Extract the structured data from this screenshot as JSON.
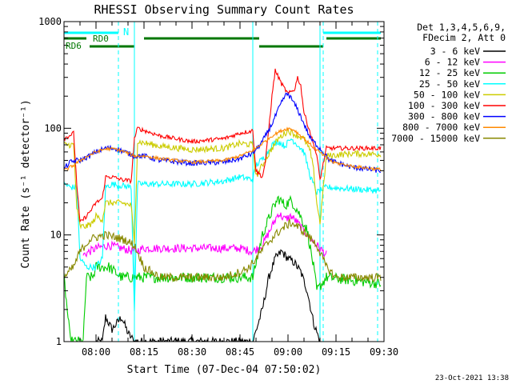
{
  "chart_data": {
    "type": "line",
    "title": "RHESSI Observing Summary Count Rates",
    "xlabel": "Start Time (07-Dec-04 07:50:02)",
    "ylabel": "Count Rate (s⁻¹ detector⁻¹)",
    "y_scale": "log",
    "ylim": [
      1,
      1000
    ],
    "xlim": [
      "07:50",
      "09:30"
    ],
    "x_ticks": [
      "08:00",
      "08:15",
      "08:30",
      "08:45",
      "09:00",
      "09:15",
      "09:30"
    ],
    "y_ticks": [
      "1",
      "10",
      "100",
      "1000"
    ],
    "legend_header": [
      "Det 1,3,4,5,6,9,",
      "FDecim 2, Att 0"
    ],
    "legend_position": "right",
    "timestamp": "23-Oct-2021 13:38",
    "flag_labels": {
      "n": "N",
      "rd0": "RD0",
      "rd6": "RD6"
    },
    "flags": [
      {
        "label": "N",
        "color": "#00ffff",
        "intervals": [
          [
            "07:50",
            "08:07"
          ],
          [
            "09:11",
            "09:29"
          ]
        ]
      },
      {
        "label": "RD0",
        "color": "#007700",
        "intervals": [
          [
            "07:50",
            "07:57"
          ],
          [
            "08:15",
            "08:51"
          ],
          [
            "09:12",
            "09:29"
          ]
        ]
      },
      {
        "label": "RD6",
        "color": "#007700",
        "intervals": [
          [
            "07:58",
            "08:12"
          ],
          [
            "08:51",
            "09:11"
          ]
        ]
      }
    ],
    "vlines": [
      {
        "t": "07:50",
        "color": "#00ffff",
        "style": "solid"
      },
      {
        "t": "08:07",
        "color": "#00ffff",
        "style": "dashed"
      },
      {
        "t": "08:12",
        "color": "#00ffff",
        "style": "solid"
      },
      {
        "t": "08:49",
        "color": "#00ffff",
        "style": "solid"
      },
      {
        "t": "09:10",
        "color": "#00ffff",
        "style": "solid"
      },
      {
        "t": "09:11",
        "color": "#00ffff",
        "style": "dashed"
      },
      {
        "t": "09:28",
        "color": "#00ffff",
        "style": "dashed"
      }
    ],
    "series": [
      {
        "name": "3 - 6 keV",
        "color": "#000000",
        "jitter": 0.04,
        "points": [
          [
            "08:00",
            1
          ],
          [
            "08:02",
            1
          ],
          [
            "08:03",
            1.7
          ],
          [
            "08:05",
            1.3
          ],
          [
            "08:08",
            1.7
          ],
          [
            "08:10",
            1.2
          ],
          [
            "08:12",
            1
          ],
          [
            "08:49",
            1
          ],
          [
            "08:52",
            2
          ],
          [
            "08:54",
            4
          ],
          [
            "08:56",
            6
          ],
          [
            "08:58",
            7
          ],
          [
            "09:00",
            6
          ],
          [
            "09:02",
            5.5
          ],
          [
            "09:04",
            4.5
          ],
          [
            "09:06",
            3
          ],
          [
            "09:08",
            1.5
          ],
          [
            "09:10",
            1
          ]
        ]
      },
      {
        "name": "6 - 12 keV",
        "color": "#ff00ff",
        "jitter": 0.04,
        "points": [
          [
            "07:56",
            6.5
          ],
          [
            "07:58",
            7
          ],
          [
            "08:00",
            7.5
          ],
          [
            "08:04",
            8
          ],
          [
            "08:08",
            7.5
          ],
          [
            "08:12",
            7
          ],
          [
            "08:15",
            7.5
          ],
          [
            "08:30",
            7.5
          ],
          [
            "08:45",
            7.5
          ],
          [
            "08:49",
            7
          ],
          [
            "08:52",
            8
          ],
          [
            "08:55",
            12
          ],
          [
            "08:57",
            16
          ],
          [
            "08:59",
            14
          ],
          [
            "09:01",
            15
          ],
          [
            "09:03",
            13
          ],
          [
            "09:06",
            10
          ],
          [
            "09:09",
            8
          ],
          [
            "09:12",
            6.5
          ]
        ]
      },
      {
        "name": "12 - 25 keV",
        "color": "#00cc00",
        "jitter": 0.05,
        "points": [
          [
            "07:50",
            4
          ],
          [
            "07:52",
            1
          ],
          [
            "07:56",
            1
          ],
          [
            "07:57",
            4
          ],
          [
            "07:59",
            4
          ],
          [
            "08:00",
            5
          ],
          [
            "08:04",
            5
          ],
          [
            "08:08",
            4
          ],
          [
            "08:12",
            4
          ],
          [
            "08:15",
            4
          ],
          [
            "08:30",
            4
          ],
          [
            "08:45",
            4
          ],
          [
            "08:49",
            4
          ],
          [
            "08:52",
            10
          ],
          [
            "08:55",
            17
          ],
          [
            "08:57",
            22
          ],
          [
            "08:59",
            19
          ],
          [
            "09:01",
            21
          ],
          [
            "09:03",
            17
          ],
          [
            "09:06",
            11
          ],
          [
            "09:08",
            5
          ],
          [
            "09:09",
            3
          ],
          [
            "09:12",
            4
          ],
          [
            "09:29",
            3.5
          ]
        ]
      },
      {
        "name": "25 - 50 keV",
        "color": "#00ffff",
        "jitter": 0.03,
        "points": [
          [
            "07:50",
            30
          ],
          [
            "07:52",
            28
          ],
          [
            "07:54",
            28
          ],
          [
            "07:55",
            6
          ],
          [
            "07:57",
            5
          ],
          [
            "08:00",
            5
          ],
          [
            "08:02",
            6
          ],
          [
            "08:03",
            28
          ],
          [
            "08:05",
            30
          ],
          [
            "08:08",
            29
          ],
          [
            "08:11",
            28
          ],
          [
            "08:12",
            2
          ],
          [
            "08:13",
            30
          ],
          [
            "08:20",
            30
          ],
          [
            "08:30",
            30
          ],
          [
            "08:40",
            32
          ],
          [
            "08:45",
            35
          ],
          [
            "08:49",
            33
          ],
          [
            "08:50",
            45
          ],
          [
            "08:53",
            55
          ],
          [
            "08:55",
            70
          ],
          [
            "08:57",
            75
          ],
          [
            "08:59",
            68
          ],
          [
            "09:01",
            80
          ],
          [
            "09:03",
            70
          ],
          [
            "09:05",
            60
          ],
          [
            "09:07",
            35
          ],
          [
            "09:09",
            25
          ],
          [
            "09:12",
            28
          ],
          [
            "09:20",
            27
          ],
          [
            "09:29",
            26
          ]
        ]
      },
      {
        "name": "50 - 100 keV",
        "color": "#cccc00",
        "jitter": 0.03,
        "points": [
          [
            "07:50",
            70
          ],
          [
            "07:53",
            70
          ],
          [
            "07:54",
            18
          ],
          [
            "07:55",
            12
          ],
          [
            "07:57",
            12
          ],
          [
            "07:59",
            13
          ],
          [
            "08:00",
            15
          ],
          [
            "08:02",
            14
          ],
          [
            "08:03",
            20
          ],
          [
            "08:05",
            20
          ],
          [
            "08:08",
            20
          ],
          [
            "08:11",
            19
          ],
          [
            "08:12",
            8
          ],
          [
            "08:13",
            75
          ],
          [
            "08:20",
            68
          ],
          [
            "08:30",
            63
          ],
          [
            "08:40",
            65
          ],
          [
            "08:45",
            72
          ],
          [
            "08:49",
            70
          ],
          [
            "08:50",
            35
          ],
          [
            "08:52",
            45
          ],
          [
            "08:55",
            65
          ],
          [
            "08:57",
            80
          ],
          [
            "09:00",
            95
          ],
          [
            "09:03",
            85
          ],
          [
            "09:05",
            80
          ],
          [
            "09:07",
            60
          ],
          [
            "09:08",
            40
          ],
          [
            "09:09",
            20
          ],
          [
            "09:10",
            13
          ],
          [
            "09:12",
            55
          ],
          [
            "09:20",
            58
          ],
          [
            "09:29",
            57
          ]
        ]
      },
      {
        "name": "100 - 300 keV",
        "color": "#ff0000",
        "jitter": 0.02,
        "points": [
          [
            "07:50",
            80
          ],
          [
            "07:53",
            90
          ],
          [
            "07:54",
            30
          ],
          [
            "07:55",
            13
          ],
          [
            "07:57",
            15
          ],
          [
            "07:59",
            18
          ],
          [
            "08:00",
            20
          ],
          [
            "08:02",
            22
          ],
          [
            "08:03",
            35
          ],
          [
            "08:05",
            35
          ],
          [
            "08:08",
            33
          ],
          [
            "08:11",
            32
          ],
          [
            "08:12",
            80
          ],
          [
            "08:13",
            100
          ],
          [
            "08:20",
            85
          ],
          [
            "08:30",
            75
          ],
          [
            "08:40",
            80
          ],
          [
            "08:45",
            90
          ],
          [
            "08:49",
            95
          ],
          [
            "08:50",
            40
          ],
          [
            "08:52",
            35
          ],
          [
            "08:53",
            50
          ],
          [
            "08:55",
            200
          ],
          [
            "08:56",
            350
          ],
          [
            "08:58",
            260
          ],
          [
            "09:00",
            210
          ],
          [
            "09:02",
            230
          ],
          [
            "09:03",
            300
          ],
          [
            "09:04",
            250
          ],
          [
            "09:05",
            140
          ],
          [
            "09:07",
            90
          ],
          [
            "09:09",
            55
          ],
          [
            "09:10",
            33
          ],
          [
            "09:12",
            65
          ],
          [
            "09:20",
            65
          ],
          [
            "09:29",
            65
          ]
        ]
      },
      {
        "name": "300 - 800 keV",
        "color": "#0000ff",
        "jitter": 0.025,
        "points": [
          [
            "07:50",
            42
          ],
          [
            "07:52",
            48
          ],
          [
            "07:54",
            50
          ],
          [
            "07:55",
            50
          ],
          [
            "07:58",
            55
          ],
          [
            "08:00",
            60
          ],
          [
            "08:03",
            65
          ],
          [
            "08:06",
            65
          ],
          [
            "08:09",
            60
          ],
          [
            "08:12",
            55
          ],
          [
            "08:15",
            55
          ],
          [
            "08:20",
            50
          ],
          [
            "08:30",
            47
          ],
          [
            "08:40",
            48
          ],
          [
            "08:45",
            52
          ],
          [
            "08:49",
            58
          ],
          [
            "08:52",
            75
          ],
          [
            "08:55",
            110
          ],
          [
            "08:57",
            150
          ],
          [
            "08:59",
            200
          ],
          [
            "09:00",
            210
          ],
          [
            "09:01",
            190
          ],
          [
            "09:03",
            150
          ],
          [
            "09:05",
            110
          ],
          [
            "09:07",
            80
          ],
          [
            "09:10",
            65
          ],
          [
            "09:13",
            50
          ],
          [
            "09:20",
            43
          ],
          [
            "09:29",
            40
          ]
        ]
      },
      {
        "name": "800 - 7000 keV",
        "color": "#ff8800",
        "jitter": 0.015,
        "points": [
          [
            "07:50",
            40
          ],
          [
            "07:53",
            45
          ],
          [
            "07:56",
            52
          ],
          [
            "08:00",
            60
          ],
          [
            "08:03",
            64
          ],
          [
            "08:06",
            64
          ],
          [
            "08:09",
            60
          ],
          [
            "08:12",
            55
          ],
          [
            "08:15",
            55
          ],
          [
            "08:20",
            52
          ],
          [
            "08:30",
            48
          ],
          [
            "08:40",
            50
          ],
          [
            "08:45",
            55
          ],
          [
            "08:49",
            62
          ],
          [
            "08:52",
            72
          ],
          [
            "08:55",
            85
          ],
          [
            "08:58",
            95
          ],
          [
            "09:00",
            100
          ],
          [
            "09:02",
            96
          ],
          [
            "09:05",
            80
          ],
          [
            "09:08",
            66
          ],
          [
            "09:11",
            56
          ],
          [
            "09:14",
            48
          ],
          [
            "09:20",
            44
          ],
          [
            "09:29",
            41
          ]
        ]
      },
      {
        "name": "7000 - 15000 keV",
        "color": "#888800",
        "jitter": 0.04,
        "points": [
          [
            "07:50",
            4
          ],
          [
            "07:53",
            5
          ],
          [
            "07:55",
            7
          ],
          [
            "07:58",
            9
          ],
          [
            "08:00",
            9.5
          ],
          [
            "08:03",
            10
          ],
          [
            "08:06",
            9.5
          ],
          [
            "08:09",
            9
          ],
          [
            "08:12",
            8
          ],
          [
            "08:15",
            5
          ],
          [
            "08:20",
            4
          ],
          [
            "08:30",
            4
          ],
          [
            "08:40",
            4
          ],
          [
            "08:45",
            4.5
          ],
          [
            "08:48",
            5
          ],
          [
            "08:50",
            6
          ],
          [
            "08:53",
            8
          ],
          [
            "08:56",
            10
          ],
          [
            "08:59",
            12
          ],
          [
            "09:01",
            13
          ],
          [
            "09:03",
            12
          ],
          [
            "09:06",
            10
          ],
          [
            "09:09",
            8
          ],
          [
            "09:12",
            5
          ],
          [
            "09:15",
            4
          ],
          [
            "09:20",
            4
          ],
          [
            "09:29",
            4
          ]
        ]
      }
    ]
  }
}
